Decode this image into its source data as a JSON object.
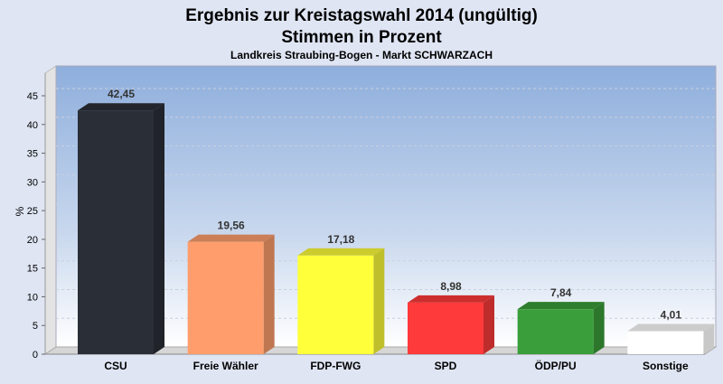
{
  "chart_data": {
    "type": "bar",
    "title": "Ergebnis zur Kreistagswahl 2014 (ungültig)",
    "subtitle": "Stimmen in Prozent",
    "caption": "Landkreis Straubing-Bogen - Markt SCHWARZACH",
    "xlabel": "",
    "ylabel": "%",
    "ylim": [
      0,
      45
    ],
    "yticks": [
      0,
      5,
      10,
      15,
      20,
      25,
      30,
      35,
      40,
      45
    ],
    "grid": true,
    "categories": [
      "CSU",
      "Freie Wähler",
      "FDP-FWG",
      "SPD",
      "ÖDP/PU",
      "Sonstige"
    ],
    "values": [
      42.45,
      19.56,
      17.18,
      8.98,
      7.84,
      4.01
    ],
    "labels": [
      "42,45",
      "19,56",
      "17,18",
      "8,98",
      "7,84",
      "4,01"
    ],
    "colors": [
      "#2a2e36",
      "#ff9e6c",
      "#ffff3a",
      "#ff3a3a",
      "#3a9e3a",
      "#ffffff"
    ]
  }
}
